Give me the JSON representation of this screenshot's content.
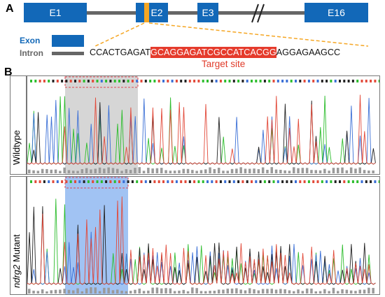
{
  "panel_a": {
    "letter": "A",
    "exons": [
      {
        "label": "E1"
      },
      {
        "label": "E2"
      },
      {
        "label": "E3"
      },
      {
        "label": "E16"
      }
    ],
    "legend": {
      "exon_label": "Exon",
      "intron_label": "Intron"
    },
    "sequence": {
      "prefix": "CCACTGAGAT",
      "target": "GCAGGAGATCGCCATCACGG",
      "suffix": "AGGAGAAGCC"
    },
    "target_label": "Target site",
    "colors": {
      "exon": "#1268b8",
      "intron": "#666666",
      "target_marker": "#f5a623",
      "highlight": "#e53b2c"
    }
  },
  "panel_b": {
    "letter": "B",
    "rows": [
      {
        "label": "Wildtype",
        "label_italic": "",
        "shade_color": "#cccccc"
      },
      {
        "label": " Mutant",
        "label_italic": "ndrg2",
        "shade_color": "#8ab4f0"
      }
    ],
    "trace_colors": {
      "A": "#2dbd2d",
      "C": "#3a6fd6",
      "G": "#222222",
      "T": "#e24a3a"
    }
  }
}
